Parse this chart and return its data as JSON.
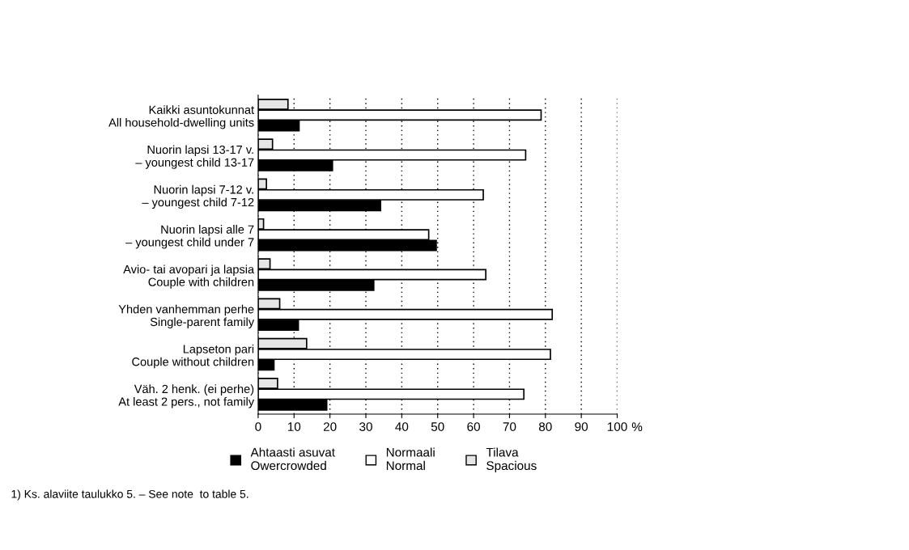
{
  "chart_data": {
    "type": "bar",
    "orientation": "horizontal",
    "categories": [
      "Kaikki asuntokunnat\nAll household-dwelling units",
      "Nuorin lapsi 13-17 v.\n– youngest child 13-17",
      "Nuorin lapsi 7-12 v.\n– youngest child 7-12",
      "Nuorin lapsi alle 7\n– youngest child under 7",
      "Avio- tai avopari ja lapsia\nCouple with children",
      "Yhden vanhemman perhe\nSingle-parent family",
      "Lapseton pari\nCouple without children",
      "Väh. 2 henk. (ei perhe)\nAt least 2 pers., not family"
    ],
    "series": [
      {
        "name": "Ahtaasti asuvat\nOwercrowded",
        "color": "#000000",
        "values": [
          11.4,
          20.7,
          34.1,
          49.6,
          32.2,
          11.2,
          4.4,
          19.1
        ]
      },
      {
        "name": "Normaali\nNormal",
        "color": "#ffffff",
        "values": [
          78.8,
          74.5,
          62.7,
          47.5,
          63.4,
          81.9,
          81.4,
          74.0
        ]
      },
      {
        "name": "Tilava\nSpacious",
        "color": "#e6e6e6",
        "values": [
          8.3,
          4.0,
          2.3,
          1.5,
          3.3,
          6.0,
          13.5,
          5.4
        ]
      }
    ],
    "xlim": [
      0,
      100
    ],
    "xticks": [
      0,
      10,
      20,
      30,
      40,
      50,
      60,
      70,
      80,
      90,
      100
    ],
    "xlabel": "%",
    "grid": "x",
    "legend": "bottom",
    "annotations": [
      "1) Ks. alaviite taulukko 5. – See note  to table 5."
    ]
  }
}
